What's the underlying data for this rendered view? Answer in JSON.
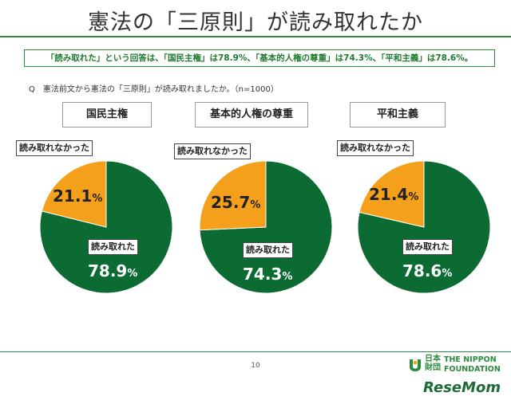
{
  "header": {
    "title": "憲法の「三原則」が読み取れたか"
  },
  "summary": {
    "text": "「読み取れた」という回答は、「国民主権」は78.9%、「基本的人権の尊重」は74.3%、「平和主義」は78.6%。"
  },
  "question": {
    "text": "Q　憲法前文から憲法の「三原則」が読み取れましたか。（n=1000）"
  },
  "colors": {
    "accent": "#2e8b3e",
    "green": "#0b6b33",
    "orange": "#f5a01a"
  },
  "chart_data": [
    {
      "type": "pie",
      "title": "国民主権",
      "labels": [
        "読み取れた",
        "読み取れなかった"
      ],
      "values": [
        78.9,
        21.1
      ],
      "value_labels": [
        "78.9",
        "21.1"
      ],
      "unit": "%"
    },
    {
      "type": "pie",
      "title": "基本的人権の尊重",
      "labels": [
        "読み取れた",
        "読み取れなかった"
      ],
      "values": [
        74.3,
        25.7
      ],
      "value_labels": [
        "74.3",
        "25.7"
      ],
      "unit": "%"
    },
    {
      "type": "pie",
      "title": "平和主義",
      "labels": [
        "読み取れた",
        "読み取れなかった"
      ],
      "values": [
        78.6,
        21.4
      ],
      "value_labels": [
        "78.6",
        "21.4"
      ],
      "unit": "%"
    }
  ],
  "footer": {
    "page_number": "10",
    "logo_jp": "日本財団",
    "logo_en_line1": "THE NIPPON",
    "logo_en_line2": "FOUNDATION",
    "watermark": "ReseMom"
  }
}
